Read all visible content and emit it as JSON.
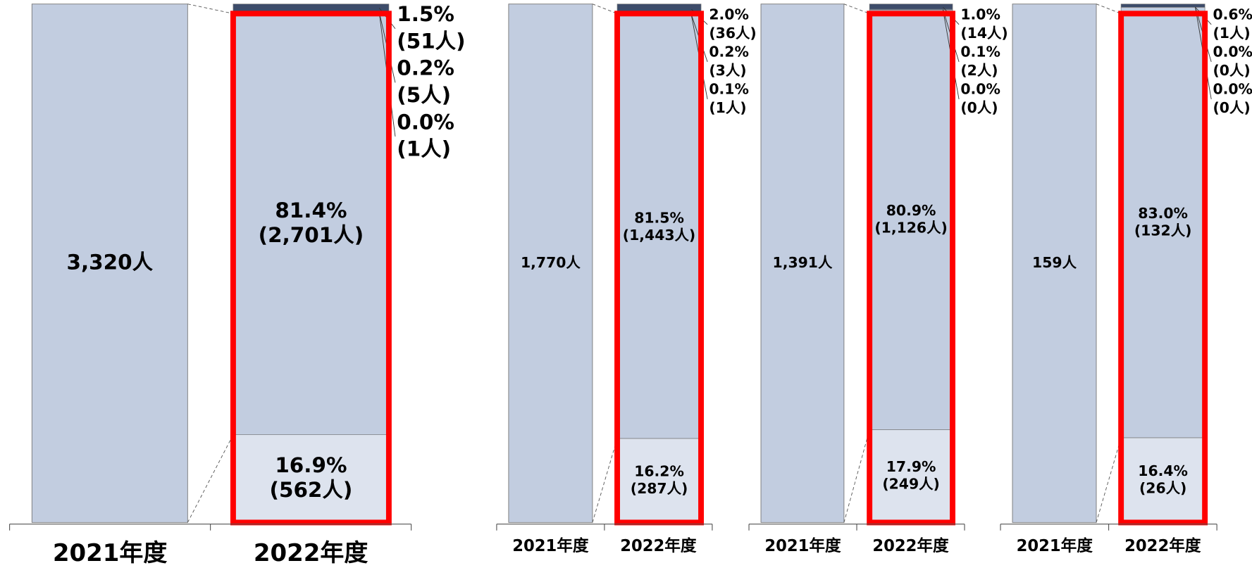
{
  "chart_data": [
    {
      "type": "bar",
      "stacked": true,
      "categories": [
        "2021年度",
        "2022年度"
      ],
      "total": 3320,
      "total_label": "3,320人",
      "total_color": "#c2cde0",
      "segments": [
        {
          "color": "#dde3ee",
          "value": 562,
          "value_label": "(562人)",
          "percent": 16.9,
          "percent_label": "16.9%"
        },
        {
          "color": "#c2cde0",
          "value": 2701,
          "value_label": "(2,701人)",
          "percent": 81.4,
          "percent_label": "81.4%"
        },
        {
          "color": "#8b9bb8",
          "value": 1,
          "value_label": "(1人)",
          "percent": 0.0,
          "percent_label": "0.0%"
        },
        {
          "color": "#5d6d8c",
          "value": 5,
          "value_label": "(5人)",
          "percent": 0.2,
          "percent_label": "0.2%"
        },
        {
          "color": "#3d4c6a",
          "value": 51,
          "value_label": "(51人)",
          "percent": 1.5,
          "percent_label": "1.5%"
        }
      ]
    },
    {
      "type": "bar",
      "stacked": true,
      "categories": [
        "2021年度",
        "2022年度"
      ],
      "total": 1770,
      "total_label": "1,770人",
      "total_color": "#c2cde0",
      "segments": [
        {
          "color": "#dde3ee",
          "value": 287,
          "value_label": "(287人)",
          "percent": 16.2,
          "percent_label": "16.2%"
        },
        {
          "color": "#c2cde0",
          "value": 1443,
          "value_label": "(1,443人)",
          "percent": 81.5,
          "percent_label": "81.5%"
        },
        {
          "color": "#8b9bb8",
          "value": 1,
          "value_label": "(1人)",
          "percent": 0.1,
          "percent_label": "0.1%"
        },
        {
          "color": "#5d6d8c",
          "value": 3,
          "value_label": "(3人)",
          "percent": 0.2,
          "percent_label": "0.2%"
        },
        {
          "color": "#3d4c6a",
          "value": 36,
          "value_label": "(36人)",
          "percent": 2.0,
          "percent_label": "2.0%"
        }
      ]
    },
    {
      "type": "bar",
      "stacked": true,
      "categories": [
        "2021年度",
        "2022年度"
      ],
      "total": 1391,
      "total_label": "1,391人",
      "total_color": "#c2cde0",
      "segments": [
        {
          "color": "#dde3ee",
          "value": 249,
          "value_label": "(249人)",
          "percent": 17.9,
          "percent_label": "17.9%"
        },
        {
          "color": "#c2cde0",
          "value": 1126,
          "value_label": "(1,126人)",
          "percent": 80.9,
          "percent_label": "80.9%"
        },
        {
          "color": "#8b9bb8",
          "value": 0,
          "value_label": "(0人)",
          "percent": 0.0,
          "percent_label": "0.0%"
        },
        {
          "color": "#5d6d8c",
          "value": 2,
          "value_label": "(2人)",
          "percent": 0.1,
          "percent_label": "0.1%"
        },
        {
          "color": "#3d4c6a",
          "value": 14,
          "value_label": "(14人)",
          "percent": 1.0,
          "percent_label": "1.0%"
        }
      ]
    },
    {
      "type": "bar",
      "stacked": true,
      "categories": [
        "2021年度",
        "2022年度"
      ],
      "total": 159,
      "total_label": "159人",
      "total_color": "#c2cde0",
      "segments": [
        {
          "color": "#dde3ee",
          "value": 26,
          "value_label": "(26人)",
          "percent": 16.4,
          "percent_label": "16.4%"
        },
        {
          "color": "#c2cde0",
          "value": 132,
          "value_label": "(132人)",
          "percent": 83.0,
          "percent_label": "83.0%"
        },
        {
          "color": "#8b9bb8",
          "value": 0,
          "value_label": "(0人)",
          "percent": 0.0,
          "percent_label": "0.0%"
        },
        {
          "color": "#5d6d8c",
          "value": 0,
          "value_label": "(0人)",
          "percent": 0.0,
          "percent_label": "0.0%"
        },
        {
          "color": "#3d4c6a",
          "value": 1,
          "value_label": "(1人)",
          "percent": 0.6,
          "percent_label": "0.6%"
        }
      ]
    }
  ]
}
